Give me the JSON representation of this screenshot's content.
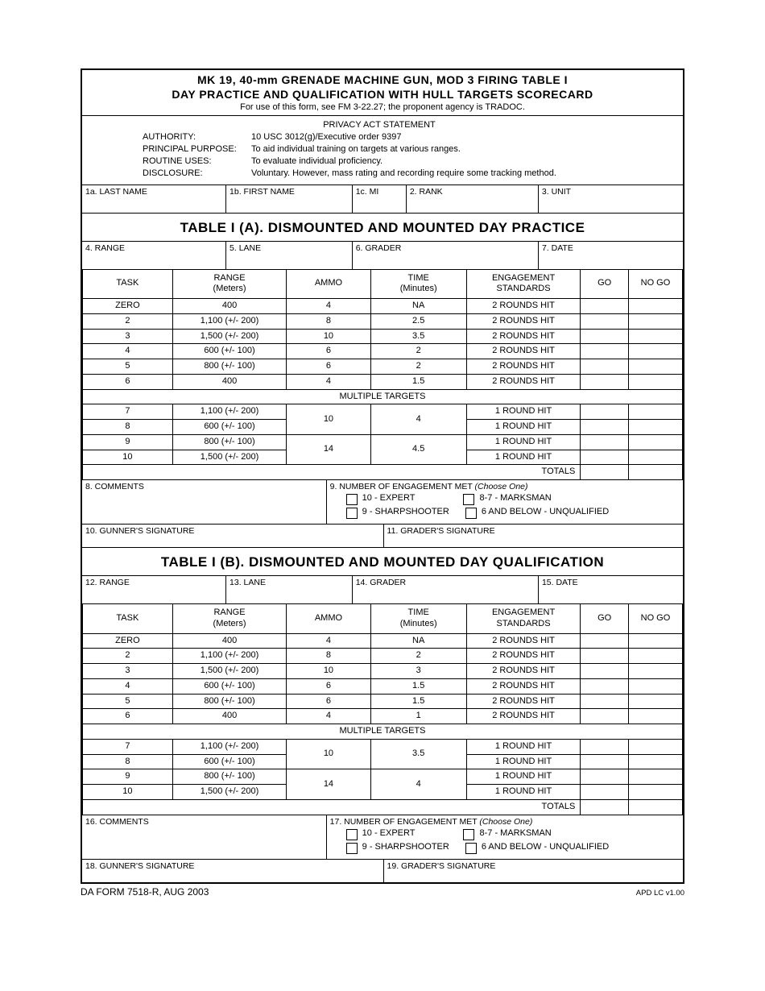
{
  "header": {
    "line1": "MK 19, 40-mm GRENADE MACHINE GUN, MOD 3 FIRING TABLE I",
    "line2": "DAY PRACTICE AND QUALIFICATION WITH HULL TARGETS SCORECARD",
    "sub": "For use of this form, see FM 3-22.27; the proponent agency is TRADOC."
  },
  "privacy": {
    "title": "PRIVACY ACT STATEMENT",
    "authority_label": "AUTHORITY:",
    "authority": "10 USC 3012(g)/Executive order 9397",
    "purpose_label": "PRINCIPAL PURPOSE:",
    "purpose": "To aid individual training on targets at various ranges.",
    "routine_label": "ROUTINE USES:",
    "routine": "To evaluate individual proficiency.",
    "disclosure_label": "DISCLOSURE:",
    "disclosure": "Voluntary.  However, mass rating and recording require some tracking method."
  },
  "id_row": {
    "last": "1a.  LAST NAME",
    "first": "1b.  FIRST NAME",
    "mi": "1c.  MI",
    "rank": "2.  RANK",
    "unit": "3.  UNIT"
  },
  "tableA": {
    "title": "TABLE I (A).  DISMOUNTED AND MOUNTED DAY PRACTICE",
    "row1": {
      "range": "4.  RANGE",
      "lane": "5.  LANE",
      "grader": "6.  GRADER",
      "date": "7.  DATE"
    },
    "cols": {
      "task": "TASK",
      "range": "RANGE",
      "range_sub": "(Meters)",
      "ammo": "AMMO",
      "time": "TIME",
      "time_sub": "(Minutes)",
      "eng": "ENGAGEMENT",
      "eng_sub": "STANDARDS",
      "go": "GO",
      "nogo": "NO GO"
    },
    "rows": [
      {
        "t": "ZERO",
        "r": "400",
        "a": "4",
        "ti": "NA",
        "e": "2 ROUNDS HIT"
      },
      {
        "t": "2",
        "r": "1,100 (+/- 200)",
        "a": "8",
        "ti": "2.5",
        "e": "2 ROUNDS HIT"
      },
      {
        "t": "3",
        "r": "1,500 (+/- 200)",
        "a": "10",
        "ti": "3.5",
        "e": "2 ROUNDS HIT"
      },
      {
        "t": "4",
        "r": "600 (+/- 100)",
        "a": "6",
        "ti": "2",
        "e": "2 ROUNDS HIT"
      },
      {
        "t": "5",
        "r": "800 (+/- 100)",
        "a": "6",
        "ti": "2",
        "e": "2 ROUNDS HIT"
      },
      {
        "t": "6",
        "r": "400",
        "a": "4",
        "ti": "1.5",
        "e": "2 ROUNDS HIT"
      }
    ],
    "multi": "MULTIPLE TARGETS",
    "multi_rows": [
      {
        "t": "7",
        "r": "1,100 (+/- 200)",
        "a": "10",
        "ti": "4",
        "e": "1 ROUND HIT"
      },
      {
        "t": "8",
        "r": "600 (+/- 100)",
        "e": "1 ROUND HIT"
      },
      {
        "t": "9",
        "r": "800 (+/- 100)",
        "a": "14",
        "ti": "4.5",
        "e": "1 ROUND HIT"
      },
      {
        "t": "10",
        "r": "1,500 (+/- 200)",
        "e": "1 ROUND HIT"
      }
    ],
    "totals": "TOTALS",
    "comments": "8.  COMMENTS",
    "eng_met": "9. NUMBER OF ENGAGEMENT MET",
    "choose": "(Choose One)",
    "opts": {
      "expert": "10 - EXPERT",
      "marksman": "8-7 - MARKSMAN",
      "sharp": "9 - SHARPSHOOTER",
      "unq": "6 AND BELOW - UNQUALIFIED"
    },
    "sig_gunner": "10.  GUNNER'S SIGNATURE",
    "sig_grader": "11.  GRADER'S SIGNATURE"
  },
  "tableB": {
    "title": "TABLE I (B).  DISMOUNTED AND MOUNTED DAY QUALIFICATION",
    "row1": {
      "range": "12.  RANGE",
      "lane": "13.  LANE",
      "grader": "14.  GRADER",
      "date": "15.  DATE"
    },
    "rows": [
      {
        "t": "ZERO",
        "r": "400",
        "a": "4",
        "ti": "NA",
        "e": "2 ROUNDS HIT"
      },
      {
        "t": "2",
        "r": "1,100 (+/- 200)",
        "a": "8",
        "ti": "2",
        "e": "2 ROUNDS HIT"
      },
      {
        "t": "3",
        "r": "1,500 (+/- 200)",
        "a": "10",
        "ti": "3",
        "e": "2 ROUNDS HIT"
      },
      {
        "t": "4",
        "r": "600 (+/- 100)",
        "a": "6",
        "ti": "1.5",
        "e": "2 ROUNDS HIT"
      },
      {
        "t": "5",
        "r": "800 (+/- 100)",
        "a": "6",
        "ti": "1.5",
        "e": "2 ROUNDS HIT"
      },
      {
        "t": "6",
        "r": "400",
        "a": "4",
        "ti": "1",
        "e": "2 ROUNDS HIT"
      }
    ],
    "multi_rows": [
      {
        "t": "7",
        "r": "1,100 (+/- 200)",
        "a": "10",
        "ti": "3.5",
        "e": "1 ROUND HIT"
      },
      {
        "t": "8",
        "r": "600 (+/- 100)",
        "e": "1 ROUND HIT"
      },
      {
        "t": "9",
        "r": "800 (+/- 100)",
        "a": "14",
        "ti": "4",
        "e": "1 ROUND HIT"
      },
      {
        "t": "10",
        "r": "1,500 (+/- 200)",
        "e": "1 ROUND HIT"
      }
    ],
    "comments": "16.  COMMENTS",
    "eng_met": "17. NUMBER OF ENGAGEMENT MET",
    "sig_gunner": "18.  GUNNER'S SIGNATURE",
    "sig_grader": "19.  GRADER'S SIGNATURE"
  },
  "footer": {
    "left": "DA FORM 7518-R, AUG 2003",
    "right": "APD LC v1.00"
  },
  "col_widths": {
    "task": "15%",
    "range": "19%",
    "ammo": "14%",
    "time": "16%",
    "eng": "19%",
    "go": "8%",
    "nogo": "9%"
  }
}
